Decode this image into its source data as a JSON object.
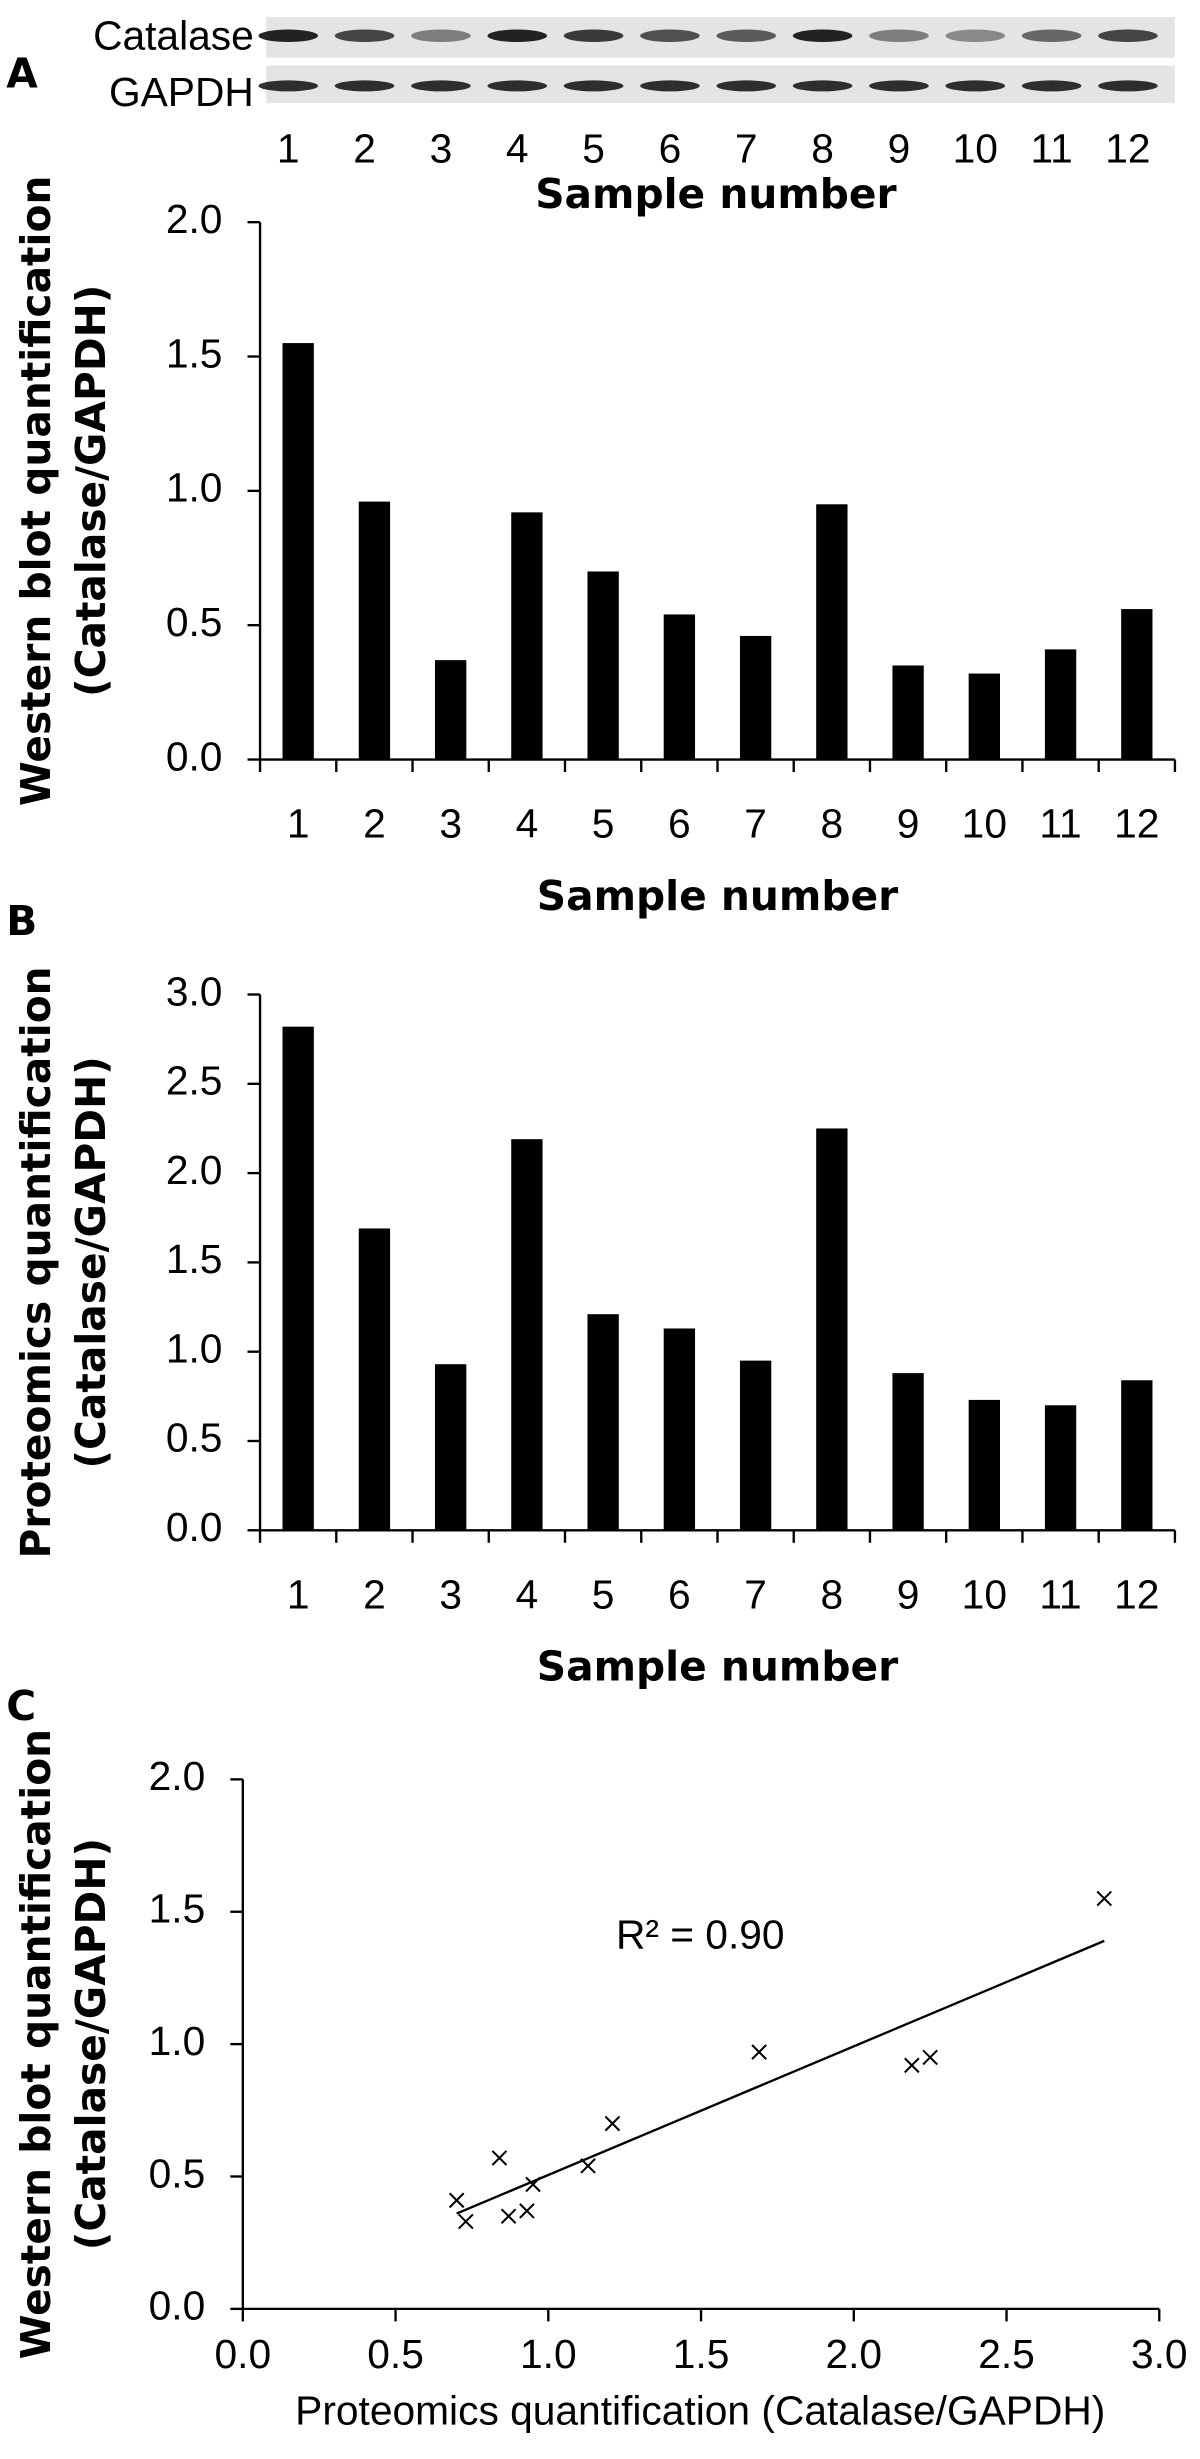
{
  "blot": {
    "panel_label": "A",
    "rows": [
      "Catalase",
      "GAPDH"
    ],
    "lanes": [
      "1",
      "2",
      "3",
      "4",
      "5",
      "6",
      "7",
      "8",
      "9",
      "10",
      "11",
      "12"
    ],
    "xlabel": "Sample number"
  },
  "chart_data": [
    {
      "type": "bar",
      "categories": [
        "1",
        "2",
        "3",
        "4",
        "5",
        "6",
        "7",
        "8",
        "9",
        "10",
        "11",
        "12"
      ],
      "values": [
        1.55,
        0.96,
        0.37,
        0.92,
        0.7,
        0.54,
        0.46,
        0.95,
        0.35,
        0.32,
        0.41,
        0.56
      ],
      "color": "#000000",
      "xlabel": "Sample number",
      "ylabel": [
        "Western blot quantification",
        "(Catalase/GAPDH)"
      ],
      "ylim": [
        0,
        2
      ],
      "yticks": [
        {
          "value": 0,
          "label": "0.0"
        },
        {
          "value": 0.5,
          "label": "0.5"
        },
        {
          "value": 1,
          "label": "1.0"
        },
        {
          "value": 1.5,
          "label": "1.5"
        },
        {
          "value": 2,
          "label": "2.0"
        }
      ],
      "grid": false
    },
    {
      "type": "bar",
      "panel_label": "B",
      "categories": [
        "1",
        "2",
        "3",
        "4",
        "5",
        "6",
        "7",
        "8",
        "9",
        "10",
        "11",
        "12"
      ],
      "values": [
        2.82,
        1.69,
        0.93,
        2.19,
        1.21,
        1.13,
        0.95,
        2.25,
        0.88,
        0.73,
        0.7,
        0.84
      ],
      "color": "#000000",
      "xlabel": "Sample number",
      "ylabel": [
        "Proteomics quantification",
        "(Catalase/GAPDH)"
      ],
      "ylim": [
        0,
        3
      ],
      "yticks": [
        {
          "value": 0,
          "label": "0.0"
        },
        {
          "value": 0.5,
          "label": "0.5"
        },
        {
          "value": 1,
          "label": "1.0"
        },
        {
          "value": 1.5,
          "label": "1.5"
        },
        {
          "value": 2,
          "label": "2.0"
        },
        {
          "value": 2.5,
          "label": "2.5"
        },
        {
          "value": 3,
          "label": "3.0"
        }
      ],
      "grid": false
    },
    {
      "type": "scatter",
      "panel_label": "C",
      "x": [
        2.82,
        1.69,
        0.93,
        2.19,
        1.21,
        1.13,
        0.95,
        2.25,
        0.87,
        0.73,
        0.7,
        0.84
      ],
      "y": [
        1.55,
        0.97,
        0.37,
        0.92,
        0.7,
        0.54,
        0.47,
        0.95,
        0.35,
        0.33,
        0.41,
        0.57
      ],
      "color": "#000000",
      "trendline": {
        "x": [
          0.7,
          2.82
        ],
        "y": [
          0.36,
          1.39
        ]
      },
      "annotation": "R² = 0.90",
      "xlabel": "Proteomics quantification (Catalase/GAPDH)",
      "ylabel": [
        "Western blot quantification",
        "(Catalase/GAPDH)"
      ],
      "xlim": [
        0,
        3
      ],
      "xticks": [
        {
          "value": 0,
          "label": "0.0"
        },
        {
          "value": 0.5,
          "label": "0.5"
        },
        {
          "value": 1,
          "label": "1.0"
        },
        {
          "value": 1.5,
          "label": "1.5"
        },
        {
          "value": 2,
          "label": "2.0"
        },
        {
          "value": 2.5,
          "label": "2.5"
        },
        {
          "value": 3,
          "label": "3.0"
        }
      ],
      "ylim": [
        0,
        2
      ],
      "yticks": [
        {
          "value": 0,
          "label": "0.0"
        },
        {
          "value": 0.5,
          "label": "0.5"
        },
        {
          "value": 1,
          "label": "1.0"
        },
        {
          "value": 1.5,
          "label": "1.5"
        },
        {
          "value": 2,
          "label": "2.0"
        }
      ],
      "grid": false
    }
  ]
}
